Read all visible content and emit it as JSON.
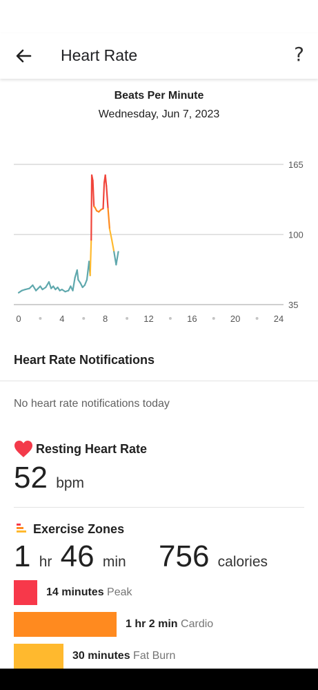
{
  "app_bar": {
    "title": "Heart Rate",
    "help_label": "?"
  },
  "chart_header": {
    "title": "Beats Per Minute",
    "date": "Wednesday, Jun 7, 2023"
  },
  "chart_data": {
    "type": "line",
    "title": "Beats Per Minute",
    "xlabel": "",
    "ylabel": "",
    "xlim": [
      0,
      24
    ],
    "ylim": [
      35,
      165
    ],
    "x_ticks": [
      "0",
      "4",
      "8",
      "12",
      "16",
      "20",
      "24"
    ],
    "y_ticks": [
      "35",
      "100",
      "165"
    ],
    "grid": true,
    "zone_colors": {
      "normal": "#5fa8ad",
      "fat_burn": "#ffb92e",
      "cardio": "#ff8a1f",
      "peak": "#f0443a"
    },
    "series": [
      {
        "x": [
          0.0,
          0.3,
          0.6,
          1.0,
          1.3,
          1.6,
          1.8,
          2.0,
          2.2,
          2.5,
          2.8,
          3.0,
          3.2,
          3.4,
          3.6,
          3.8,
          4.0,
          4.3,
          4.6,
          4.8,
          5.0,
          5.2,
          5.4,
          5.5,
          5.7,
          5.9,
          6.1,
          6.3,
          6.5,
          6.6,
          6.7,
          6.75,
          6.85,
          6.95,
          7.05,
          7.2,
          7.4,
          7.6,
          7.8,
          7.9,
          8.0,
          8.1,
          8.25,
          8.4,
          8.6,
          8.8,
          9.0,
          9.2
        ],
        "y": [
          46,
          48,
          49,
          50,
          53,
          48,
          50,
          52,
          49,
          51,
          56,
          50,
          52,
          49,
          51,
          48,
          49,
          47,
          48,
          52,
          48,
          60,
          67,
          58,
          55,
          51,
          53,
          58,
          75,
          62,
          95,
          155,
          150,
          126,
          125,
          122,
          121,
          123,
          124,
          148,
          155,
          145,
          124,
          105,
          95,
          84,
          72,
          84
        ]
      }
    ]
  },
  "notifications": {
    "title": "Heart Rate Notifications",
    "empty_text": "No heart rate notifications today"
  },
  "resting": {
    "title": "Resting Heart Rate",
    "value": "52",
    "unit": "bpm"
  },
  "exercise": {
    "title": "Exercise Zones",
    "hours": "1",
    "hours_unit": "hr",
    "minutes": "46",
    "minutes_unit": "min",
    "calories": "756",
    "calories_unit": "calories",
    "zones": [
      {
        "duration": "14 minutes",
        "name": "Peak",
        "minutes": 14,
        "color": "#f7384a"
      },
      {
        "duration": "1 hr 2 min",
        "name": "Cardio",
        "minutes": 62,
        "color": "#ff8a1f"
      },
      {
        "duration": "30 minutes",
        "name": "Fat Burn",
        "minutes": 30,
        "color": "#ffb92e"
      }
    ]
  }
}
